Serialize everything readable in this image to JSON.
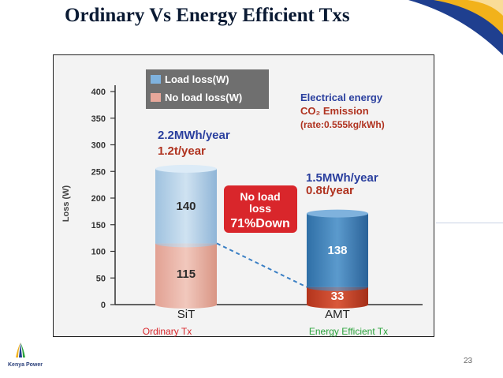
{
  "page": {
    "title": "Ordinary Vs Energy Efficient Txs",
    "page_number": "23"
  },
  "logo": {
    "text": "Kenya Power"
  },
  "colors": {
    "navy": "#1f3f8f",
    "gold": "#f2b21b",
    "load": "#6aa4d6",
    "noload": "#e0a497",
    "red": "#d9262b",
    "green": "#2aa33b",
    "panel": "#f3f3f3"
  },
  "chart_data": {
    "type": "bar",
    "stacked": true,
    "categories": [
      "SiT",
      "AMT"
    ],
    "category_subtitles": [
      "Ordinary Tx",
      "Energy Efficient Tx"
    ],
    "series": [
      {
        "name": "No load loss(W)",
        "values": [
          115,
          33
        ]
      },
      {
        "name": "Load loss(W)",
        "values": [
          140,
          138
        ]
      }
    ],
    "ylabel": "Loss (W)",
    "ylim": [
      0,
      400
    ],
    "yticks": [
      "0",
      "50",
      "100",
      "150",
      "200",
      "250",
      "300",
      "350",
      "400"
    ],
    "legend_position": "top-left",
    "annotations": {
      "header": [
        "Electrical energy",
        "CO₂ Emission",
        "(rate:0.555kg/kWh)"
      ],
      "sit_energy": "2.2MWh/year",
      "sit_co2": "1.2t/year",
      "amt_energy": "1.5MWh/year",
      "amt_co2": "0.8t/year",
      "callout": [
        "No load",
        "loss",
        "71%Down"
      ]
    }
  }
}
